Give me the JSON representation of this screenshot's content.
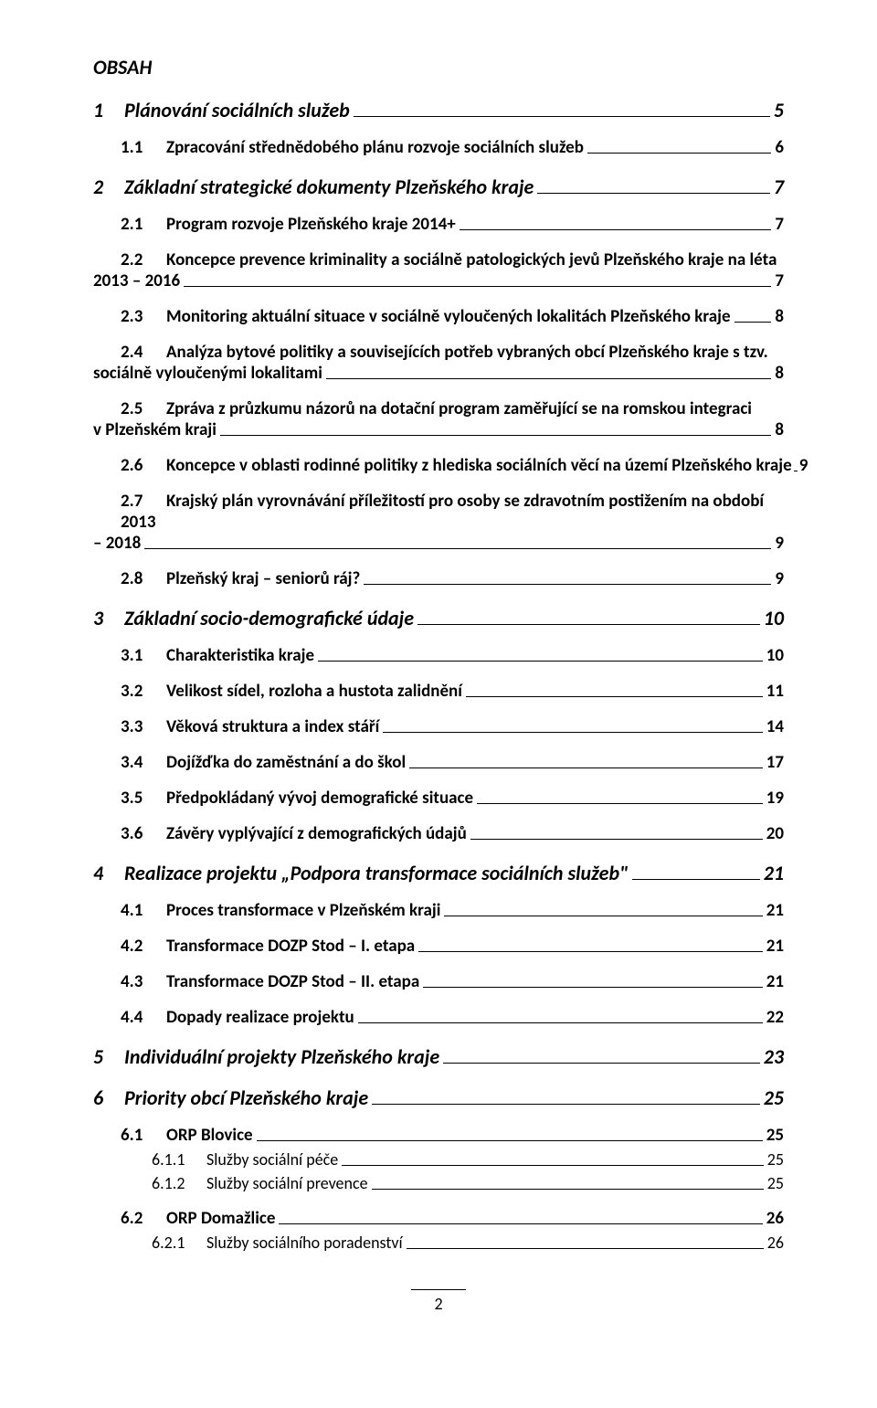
{
  "title": "OBSAH",
  "entries": [
    {
      "level": 1,
      "num": "1",
      "text": "Plánování sociálních služeb",
      "page": "5"
    },
    {
      "level": 2,
      "num": "1.1",
      "text": "Zpracování střednědobého plánu rozvoje sociálních služeb",
      "page": "6"
    },
    {
      "level": 1,
      "num": "2",
      "text": "Základní strategické dokumenty Plzeňského kraje",
      "page": "7"
    },
    {
      "level": 2,
      "num": "2.1",
      "text": "Program rozvoje Plzeňského kraje 2014+",
      "page": "7"
    },
    {
      "level": "2m",
      "num": "2.2",
      "line1": "Koncepce prevence kriminality a sociálně patologických jevů Plzeňského kraje na léta",
      "line2": "2013 – 2016",
      "page": "7"
    },
    {
      "level": 2,
      "num": "2.3",
      "text": "Monitoring aktuální situace v sociálně vyloučených lokalitách Plzeňského kraje",
      "page": "8"
    },
    {
      "level": "2m",
      "num": "2.4",
      "line1": "Analýza bytové politiky a souvisejících potřeb vybraných obcí Plzeňského kraje s tzv.",
      "line2": "sociálně vyloučenými lokalitami",
      "page": "8"
    },
    {
      "level": "2m",
      "num": "2.5",
      "line1": "Zpráva z průzkumu názorů na dotační program zaměřující se na romskou integraci",
      "line2": "v Plzeňském kraji",
      "page": "8"
    },
    {
      "level": 2,
      "num": "2.6",
      "text": "Koncepce v oblasti rodinné politiky z hlediska sociálních věcí na území Plzeňského kraje",
      "page": "9",
      "tight": true
    },
    {
      "level": "2m",
      "num": "2.7",
      "line1": "Krajský plán vyrovnávání příležitostí pro osoby se zdravotním postižením na období 2013",
      "line2": "– 2018",
      "page": "9"
    },
    {
      "level": 2,
      "num": "2.8",
      "text": "Plzeňský kraj – seniorů ráj?",
      "page": "9"
    },
    {
      "level": 1,
      "num": "3",
      "text": "Základní socio-demografické údaje",
      "page": "10"
    },
    {
      "level": 2,
      "num": "3.1",
      "text": "Charakteristika kraje",
      "page": "10"
    },
    {
      "level": 2,
      "num": "3.2",
      "text": "Velikost sídel, rozloha a hustota zalidnění",
      "page": "11"
    },
    {
      "level": 2,
      "num": "3.3",
      "text": "Věková struktura a index stáří",
      "page": "14"
    },
    {
      "level": 2,
      "num": "3.4",
      "text": "Dojížďka do zaměstnání a do škol",
      "page": "17"
    },
    {
      "level": 2,
      "num": "3.5",
      "text": "Předpokládaný vývoj demografické situace",
      "page": "19"
    },
    {
      "level": 2,
      "num": "3.6",
      "text": "Závěry vyplývající z demografických údajů",
      "page": "20"
    },
    {
      "level": 1,
      "num": "4",
      "text": "Realizace projektu „Podpora transformace sociálních služeb\"",
      "page": "21"
    },
    {
      "level": 2,
      "num": "4.1",
      "text": "Proces transformace v Plzeňském kraji",
      "page": "21"
    },
    {
      "level": 2,
      "num": "4.2",
      "text": "Transformace DOZP Stod – I. etapa",
      "page": "21"
    },
    {
      "level": 2,
      "num": "4.3",
      "text": "Transformace DOZP Stod – II. etapa",
      "page": "21"
    },
    {
      "level": 2,
      "num": "4.4",
      "text": "Dopady realizace projektu",
      "page": "22"
    },
    {
      "level": 1,
      "num": "5",
      "text": "Individuální projekty Plzeňského kraje",
      "page": "23"
    },
    {
      "level": 1,
      "num": "6",
      "text": "Priority obcí Plzeňského kraje",
      "page": "25"
    },
    {
      "level": 2,
      "num": "6.1",
      "text": "ORP Blovice",
      "page": "25"
    },
    {
      "level": 3,
      "num": "6.1.1",
      "text": "Služby sociální péče",
      "page": "25"
    },
    {
      "level": 3,
      "num": "6.1.2",
      "text": "Služby sociální prevence",
      "page": "25"
    },
    {
      "level": 2,
      "num": "6.2",
      "text": "ORP Domažlice",
      "page": "26"
    },
    {
      "level": 3,
      "num": "6.2.1",
      "text": "Služby sociálního poradenství",
      "page": "26"
    }
  ],
  "footerPage": "2"
}
